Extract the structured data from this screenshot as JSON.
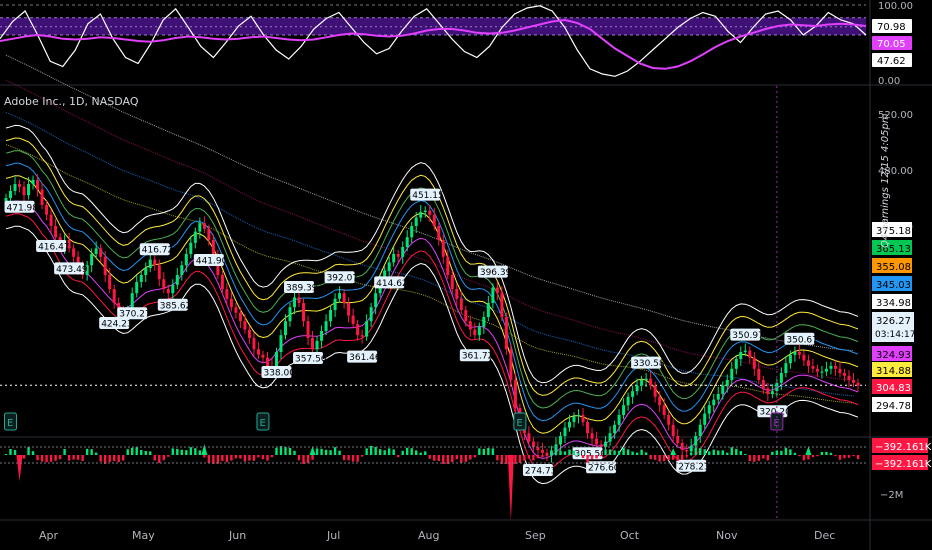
{
  "header": {
    "symbol_title": "Adobe Inc., 1D, NASDAQ",
    "earnings_note": "Q4 earnings 12/15 4:05pm"
  },
  "chart_data": [
    {
      "type": "line",
      "panel": "oscillator",
      "y_ticks": [
        "100.00",
        "0.00"
      ],
      "levels": [
        70.98,
        70.05,
        47.62
      ],
      "level_labels": [
        "70.98",
        "70.05",
        "47.62"
      ],
      "level_colors": [
        "#ffffff",
        "#e040fb",
        "#ffffff"
      ],
      "ylim": [
        0,
        100
      ],
      "band": [
        60,
        83
      ],
      "series": [
        {
          "values": [
            55,
            78,
            92,
            60,
            25,
            18,
            40,
            75,
            88,
            55,
            30,
            22,
            48,
            80,
            95,
            70,
            45,
            30,
            50,
            72,
            85,
            60,
            40,
            28,
            45,
            68,
            82,
            90,
            70,
            50,
            35,
            42,
            65,
            85,
            95,
            75,
            55,
            38,
            30,
            45,
            70,
            88,
            96,
            99,
            92,
            70,
            40,
            15,
            8,
            5,
            12,
            25,
            40,
            55,
            70,
            82,
            90,
            85,
            65,
            50,
            70,
            88,
            92,
            80,
            60,
            72,
            90,
            80,
            75,
            60
          ]
        },
        {
          "values": [
            52,
            55,
            58,
            60,
            58,
            55,
            54,
            55,
            57,
            56,
            54,
            52,
            51,
            53,
            56,
            58,
            57,
            55,
            54,
            55,
            57,
            58,
            56,
            54,
            53,
            54,
            57,
            60,
            62,
            61,
            59,
            58,
            59,
            62,
            66,
            68,
            68,
            66,
            63,
            62,
            63,
            66,
            70,
            74,
            78,
            80,
            76,
            68,
            55,
            42,
            32,
            22,
            16,
            15,
            18,
            25,
            34,
            44,
            52,
            58,
            63,
            68,
            72,
            74,
            73,
            72,
            74,
            75,
            74,
            72
          ]
        }
      ]
    },
    {
      "type": "candlestick",
      "panel": "price",
      "x_labels": [
        "Apr",
        "May",
        "Jun",
        "Jul",
        "Aug",
        "Sep",
        "Oct",
        "Nov",
        "Dec"
      ],
      "y_ticks": [
        "520.00",
        "480.00",
        "440.00"
      ],
      "ylim": [
        290,
        540
      ],
      "last_price": "326.27",
      "countdown": "03:14:17",
      "band_offsets": [
        -30,
        -20,
        -10,
        10,
        20,
        30,
        40,
        50
      ],
      "band_colors": [
        "#ffffff",
        "#ff1744",
        "#e040fb",
        "#ffeb3b",
        "#2196f3",
        "#4caf50",
        "#ffeb3b",
        "#ffffff"
      ],
      "band_labels": [
        {
          "value": "375.18",
          "bg": "#ffffff",
          "fg": "#000000"
        },
        {
          "value": "365.13",
          "bg": "#00c853",
          "fg": "#000000"
        },
        {
          "value": "355.08",
          "bg": "#ff9800",
          "fg": "#000000"
        },
        {
          "value": "345.03",
          "bg": "#2196f3",
          "fg": "#000000"
        },
        {
          "value": "334.98",
          "bg": "#ffffff",
          "fg": "#000000"
        },
        {
          "value": "324.93",
          "bg": "#e040fb",
          "fg": "#000000"
        },
        {
          "value": "314.88",
          "bg": "#ffeb3b",
          "fg": "#000000"
        },
        {
          "value": "304.83",
          "bg": "#ff1744",
          "fg": "#ffffff"
        },
        {
          "value": "294.78",
          "bg": "#ffffff",
          "fg": "#000000"
        }
      ],
      "closes": [
        460,
        465,
        470,
        468,
        462,
        470,
        473,
        466,
        455,
        448,
        440,
        432,
        425,
        430,
        424,
        418,
        410,
        405,
        412,
        420,
        424,
        418,
        405,
        395,
        385,
        378,
        372,
        380,
        392,
        400,
        405,
        410,
        416,
        412,
        402,
        395,
        392,
        398,
        405,
        412,
        420,
        428,
        436,
        442,
        438,
        430,
        418,
        405,
        395,
        388,
        382,
        378,
        372,
        366,
        360,
        352,
        348,
        346,
        340,
        338,
        350,
        362,
        372,
        382,
        389,
        385,
        372,
        360,
        352,
        358,
        365,
        372,
        380,
        388,
        392,
        385,
        376,
        370,
        362,
        361,
        372,
        382,
        392,
        400,
        408,
        414,
        420,
        418,
        425,
        432,
        440,
        446,
        450,
        451,
        448,
        440,
        430,
        418,
        405,
        395,
        388,
        380,
        372,
        366,
        362,
        368,
        375,
        385,
        396,
        392,
        375,
        352,
        330,
        310,
        300,
        292,
        286,
        282,
        280,
        278,
        276,
        279,
        284,
        290,
        296,
        300,
        304,
        305,
        300,
        292,
        288,
        284,
        282,
        286,
        292,
        298,
        305,
        312,
        318,
        322,
        326,
        330,
        331,
        326,
        318,
        312,
        305,
        298,
        290,
        285,
        280,
        279,
        283,
        290,
        298,
        306,
        312,
        316,
        320,
        326,
        330,
        338,
        345,
        350,
        351,
        346,
        338,
        330,
        324,
        320,
        322,
        328,
        335,
        342,
        348,
        350,
        348,
        344,
        340,
        338,
        336,
        336,
        338,
        340,
        338,
        335,
        333,
        330,
        328,
        326
      ],
      "labels": [
        {
          "i": 3,
          "value": "471.98"
        },
        {
          "i": 10,
          "value": "416.47"
        },
        {
          "i": 14,
          "value": "473.49"
        },
        {
          "i": 24,
          "value": "424.23"
        },
        {
          "i": 28,
          "value": "370.27"
        },
        {
          "i": 33,
          "value": "416.72"
        },
        {
          "i": 37,
          "value": "385.62"
        },
        {
          "i": 45,
          "value": "441.90"
        },
        {
          "i": 60,
          "value": "338.00"
        },
        {
          "i": 65,
          "value": "389.39"
        },
        {
          "i": 67,
          "value": "357.56"
        },
        {
          "i": 74,
          "value": "392.07"
        },
        {
          "i": 79,
          "value": "361.46"
        },
        {
          "i": 85,
          "value": "414.62"
        },
        {
          "i": 93,
          "value": "451.15"
        },
        {
          "i": 108,
          "value": "396.39"
        },
        {
          "i": 104,
          "value": "361.72"
        },
        {
          "i": 118,
          "value": "274.73"
        },
        {
          "i": 129,
          "value": "305.50"
        },
        {
          "i": 132,
          "value": "276.60"
        },
        {
          "i": 142,
          "value": "330.58"
        },
        {
          "i": 152,
          "value": "278.23"
        },
        {
          "i": 164,
          "value": "350.97"
        },
        {
          "i": 170,
          "value": "320.20"
        },
        {
          "i": 176,
          "value": "350.67"
        }
      ]
    },
    {
      "type": "bar",
      "panel": "volume_delta",
      "value_labels": [
        "−392.161K",
        "−392.161K"
      ],
      "y_ticks": [
        "−2M"
      ],
      "spikes": [
        {
          "i": 3,
          "value": -12
        },
        {
          "i": 44,
          "value": 5
        },
        {
          "i": 68,
          "value": 4
        },
        {
          "i": 112,
          "value": -30
        },
        {
          "i": 148,
          "value": 3
        },
        {
          "i": 178,
          "value": 4
        }
      ]
    }
  ],
  "earnings_markers": [
    {
      "i": 1,
      "label": "E",
      "color": "#26a69a"
    },
    {
      "i": 57,
      "label": "E",
      "color": "#26a69a"
    },
    {
      "i": 114,
      "label": "E",
      "color": "#26a69a"
    },
    {
      "i": 171,
      "label": "E",
      "color": "#9c27b0"
    }
  ]
}
